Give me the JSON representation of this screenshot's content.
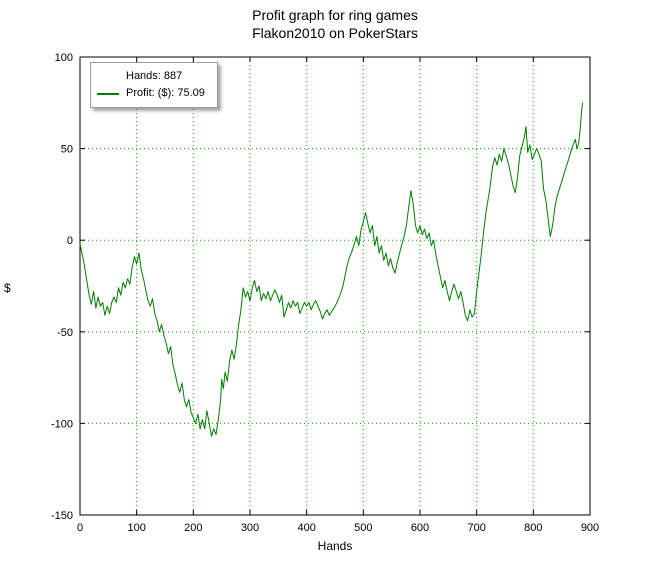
{
  "legend": {
    "hands_label": "Hands: 887",
    "profit_label": "Profit: ($): 75.09"
  },
  "chart_data": {
    "type": "line",
    "title": "Profit graph for ring games",
    "subtitle": "Flakon2010 on PokerStars",
    "xlabel": "Hands",
    "ylabel": "$",
    "xlim": [
      0,
      900
    ],
    "ylim": [
      -150,
      100
    ],
    "x_ticks": [
      0,
      100,
      200,
      300,
      400,
      500,
      600,
      700,
      800,
      900
    ],
    "y_ticks": [
      -150,
      -100,
      -50,
      0,
      50,
      100
    ],
    "grid": true,
    "grid_color": "#00a800",
    "line_color": "#007d00",
    "legend_position": "top-left",
    "series": [
      {
        "name": "Profit ($)",
        "final_hands": 887,
        "final_profit": 75.09,
        "points": [
          [
            0,
            -2
          ],
          [
            4,
            -8
          ],
          [
            8,
            -14
          ],
          [
            12,
            -22
          ],
          [
            16,
            -30
          ],
          [
            20,
            -35
          ],
          [
            24,
            -28
          ],
          [
            28,
            -37
          ],
          [
            32,
            -31
          ],
          [
            36,
            -36
          ],
          [
            40,
            -34
          ],
          [
            44,
            -41
          ],
          [
            48,
            -36
          ],
          [
            52,
            -40
          ],
          [
            56,
            -34
          ],
          [
            60,
            -31
          ],
          [
            64,
            -34
          ],
          [
            68,
            -26
          ],
          [
            72,
            -30
          ],
          [
            76,
            -23
          ],
          [
            80,
            -26
          ],
          [
            84,
            -21
          ],
          [
            88,
            -24
          ],
          [
            92,
            -15
          ],
          [
            96,
            -9
          ],
          [
            100,
            -13
          ],
          [
            104,
            -7
          ],
          [
            108,
            -16
          ],
          [
            112,
            -21
          ],
          [
            116,
            -27
          ],
          [
            120,
            -33
          ],
          [
            124,
            -36
          ],
          [
            128,
            -32
          ],
          [
            132,
            -40
          ],
          [
            136,
            -44
          ],
          [
            140,
            -50
          ],
          [
            144,
            -46
          ],
          [
            148,
            -52
          ],
          [
            152,
            -56
          ],
          [
            156,
            -62
          ],
          [
            160,
            -58
          ],
          [
            164,
            -68
          ],
          [
            168,
            -73
          ],
          [
            172,
            -79
          ],
          [
            176,
            -83
          ],
          [
            180,
            -78
          ],
          [
            184,
            -87
          ],
          [
            188,
            -91
          ],
          [
            192,
            -87
          ],
          [
            196,
            -94
          ],
          [
            200,
            -97
          ],
          [
            204,
            -100
          ],
          [
            208,
            -95
          ],
          [
            212,
            -103
          ],
          [
            216,
            -98
          ],
          [
            220,
            -103
          ],
          [
            224,
            -93
          ],
          [
            228,
            -100
          ],
          [
            232,
            -107
          ],
          [
            236,
            -103
          ],
          [
            240,
            -106
          ],
          [
            244,
            -98
          ],
          [
            248,
            -88
          ],
          [
            250,
            -76
          ],
          [
            253,
            -81
          ],
          [
            256,
            -72
          ],
          [
            260,
            -77
          ],
          [
            264,
            -66
          ],
          [
            268,
            -60
          ],
          [
            272,
            -65
          ],
          [
            276,
            -57
          ],
          [
            280,
            -46
          ],
          [
            284,
            -38
          ],
          [
            288,
            -26
          ],
          [
            292,
            -31
          ],
          [
            296,
            -28
          ],
          [
            300,
            -33
          ],
          [
            304,
            -26
          ],
          [
            308,
            -22
          ],
          [
            312,
            -28
          ],
          [
            316,
            -25
          ],
          [
            320,
            -33
          ],
          [
            324,
            -29
          ],
          [
            328,
            -32
          ],
          [
            332,
            -28
          ],
          [
            336,
            -33
          ],
          [
            340,
            -30
          ],
          [
            344,
            -27
          ],
          [
            348,
            -30
          ],
          [
            352,
            -34
          ],
          [
            356,
            -30
          ],
          [
            360,
            -42
          ],
          [
            364,
            -38
          ],
          [
            368,
            -34
          ],
          [
            372,
            -37
          ],
          [
            376,
            -33
          ],
          [
            380,
            -36
          ],
          [
            384,
            -34
          ],
          [
            388,
            -40
          ],
          [
            392,
            -37
          ],
          [
            396,
            -34
          ],
          [
            400,
            -36
          ],
          [
            404,
            -34
          ],
          [
            408,
            -38
          ],
          [
            412,
            -35
          ],
          [
            416,
            -33
          ],
          [
            420,
            -36
          ],
          [
            424,
            -39
          ],
          [
            428,
            -43
          ],
          [
            432,
            -40
          ],
          [
            436,
            -38
          ],
          [
            440,
            -41
          ],
          [
            444,
            -39
          ],
          [
            448,
            -37
          ],
          [
            452,
            -35
          ],
          [
            456,
            -32
          ],
          [
            460,
            -29
          ],
          [
            464,
            -25
          ],
          [
            468,
            -19
          ],
          [
            472,
            -13
          ],
          [
            476,
            -9
          ],
          [
            480,
            -6
          ],
          [
            484,
            -2
          ],
          [
            488,
            2
          ],
          [
            492,
            -3
          ],
          [
            496,
            6
          ],
          [
            500,
            10
          ],
          [
            504,
            15
          ],
          [
            508,
            9
          ],
          [
            512,
            4
          ],
          [
            516,
            8
          ],
          [
            520,
            -3
          ],
          [
            524,
            2
          ],
          [
            528,
            -7
          ],
          [
            532,
            -3
          ],
          [
            536,
            -11
          ],
          [
            540,
            -7
          ],
          [
            544,
            -14
          ],
          [
            548,
            -10
          ],
          [
            552,
            -15
          ],
          [
            556,
            -18
          ],
          [
            560,
            -12
          ],
          [
            564,
            -7
          ],
          [
            568,
            -2
          ],
          [
            572,
            2
          ],
          [
            576,
            8
          ],
          [
            580,
            18
          ],
          [
            584,
            27
          ],
          [
            588,
            20
          ],
          [
            592,
            8
          ],
          [
            596,
            4
          ],
          [
            600,
            8
          ],
          [
            604,
            3
          ],
          [
            608,
            6
          ],
          [
            612,
            1
          ],
          [
            616,
            4
          ],
          [
            620,
            -3
          ],
          [
            624,
            0
          ],
          [
            628,
            -8
          ],
          [
            632,
            -14
          ],
          [
            636,
            -20
          ],
          [
            640,
            -26
          ],
          [
            644,
            -22
          ],
          [
            648,
            -28
          ],
          [
            652,
            -33
          ],
          [
            656,
            -28
          ],
          [
            660,
            -24
          ],
          [
            664,
            -28
          ],
          [
            668,
            -32
          ],
          [
            672,
            -28
          ],
          [
            676,
            -34
          ],
          [
            680,
            -41
          ],
          [
            684,
            -44
          ],
          [
            688,
            -38
          ],
          [
            692,
            -42
          ],
          [
            696,
            -40
          ],
          [
            700,
            -28
          ],
          [
            704,
            -18
          ],
          [
            708,
            -8
          ],
          [
            712,
            4
          ],
          [
            716,
            14
          ],
          [
            720,
            22
          ],
          [
            724,
            30
          ],
          [
            728,
            40
          ],
          [
            732,
            45
          ],
          [
            736,
            41
          ],
          [
            740,
            47
          ],
          [
            744,
            43
          ],
          [
            748,
            50
          ],
          [
            752,
            46
          ],
          [
            756,
            42
          ],
          [
            760,
            36
          ],
          [
            764,
            30
          ],
          [
            768,
            26
          ],
          [
            772,
            34
          ],
          [
            776,
            46
          ],
          [
            780,
            51
          ],
          [
            784,
            56
          ],
          [
            787,
            62
          ],
          [
            790,
            48
          ],
          [
            794,
            52
          ],
          [
            798,
            44
          ],
          [
            802,
            47
          ],
          [
            806,
            50
          ],
          [
            810,
            47
          ],
          [
            814,
            43
          ],
          [
            818,
            28
          ],
          [
            822,
            22
          ],
          [
            826,
            12
          ],
          [
            830,
            2
          ],
          [
            834,
            8
          ],
          [
            838,
            18
          ],
          [
            842,
            24
          ],
          [
            846,
            28
          ],
          [
            850,
            32
          ],
          [
            854,
            36
          ],
          [
            858,
            40
          ],
          [
            862,
            44
          ],
          [
            866,
            48
          ],
          [
            870,
            52
          ],
          [
            874,
            55
          ],
          [
            877,
            50
          ],
          [
            880,
            53
          ],
          [
            883,
            62
          ],
          [
            885,
            70
          ],
          [
            887,
            75.09
          ]
        ]
      }
    ]
  }
}
